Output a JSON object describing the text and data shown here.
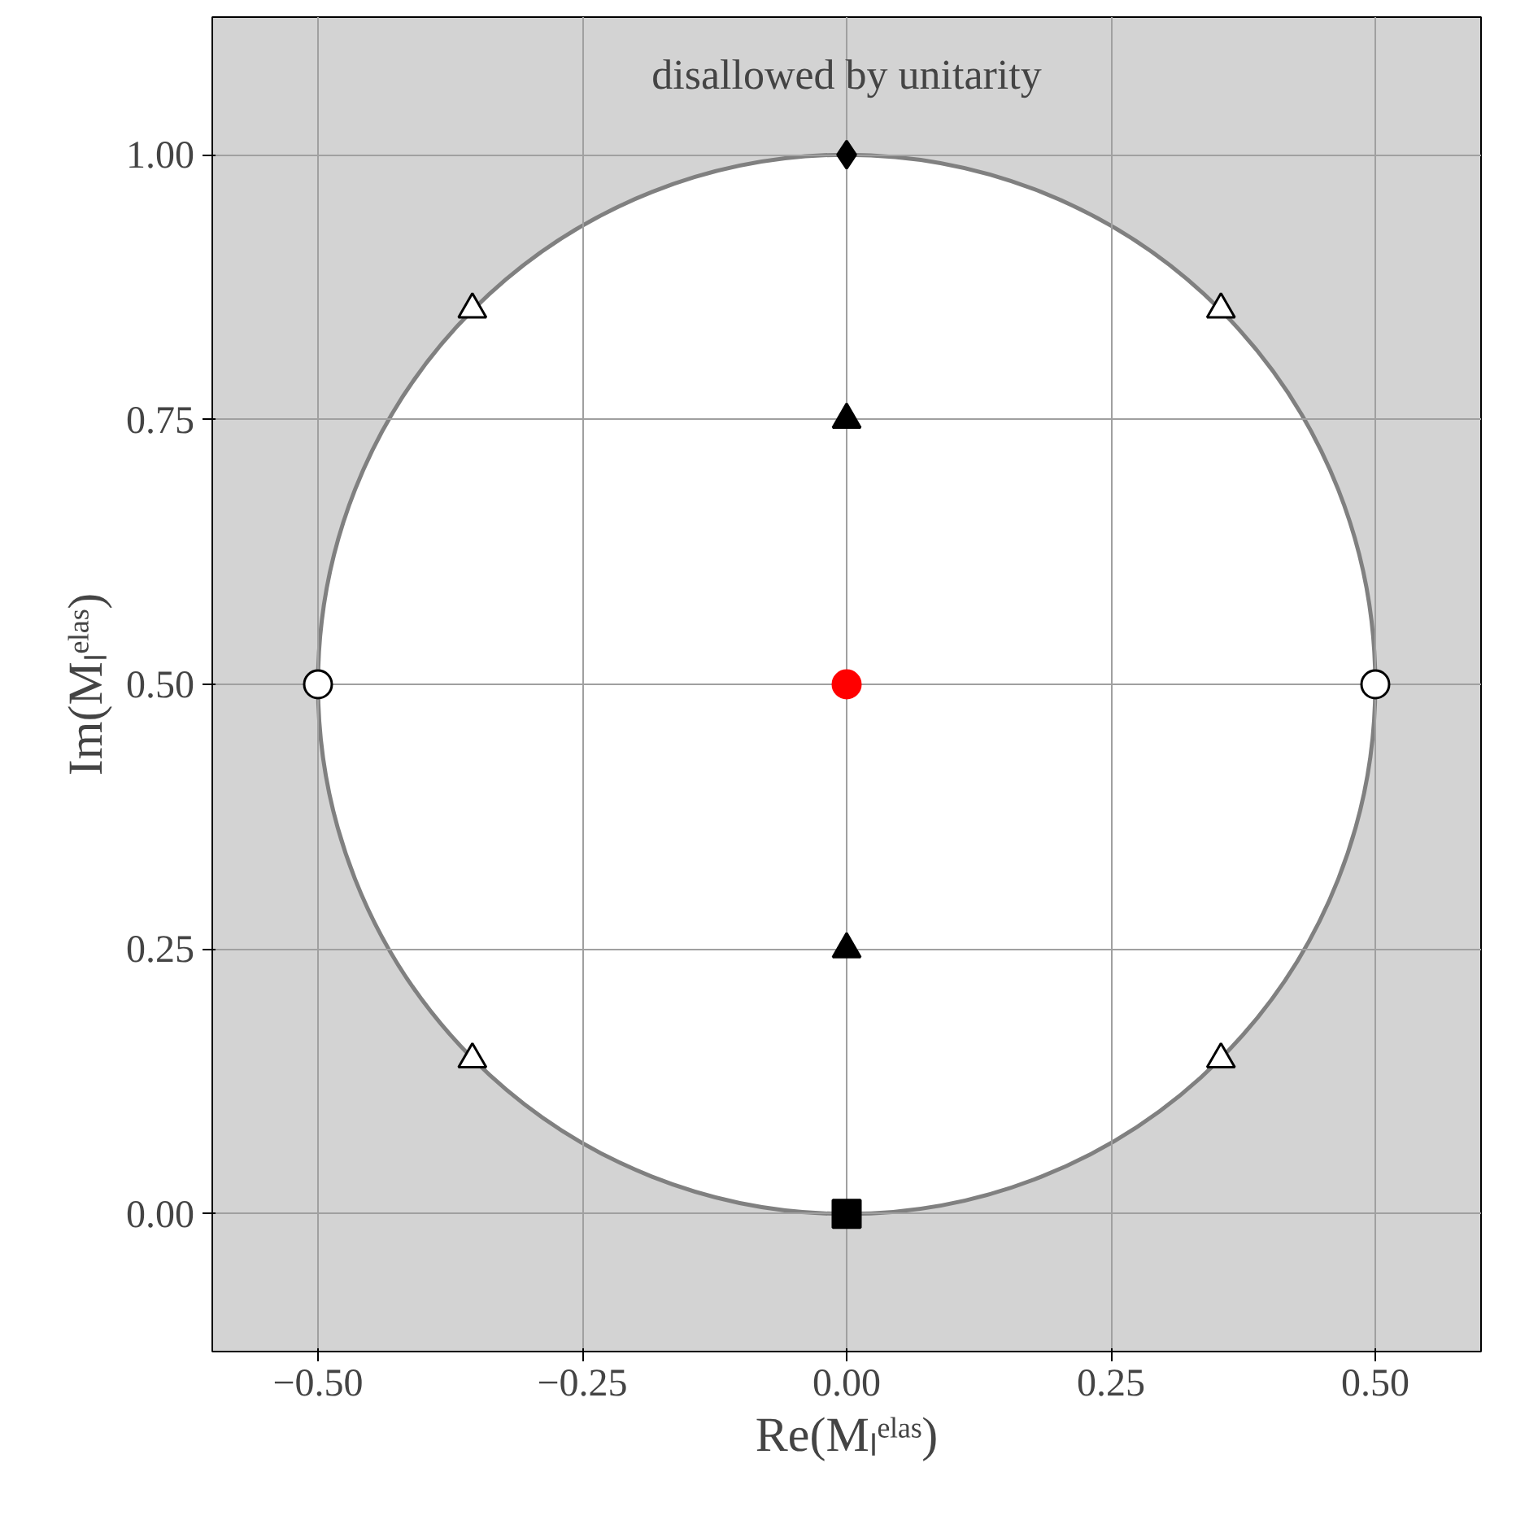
{
  "chart_data": {
    "type": "scatter",
    "xlabel": "Re(Mₗᵉˡᵃˢ)",
    "ylabel": "Im(Mₗᵉˡᵃˢ)",
    "annotations": [
      "disallowed by unitarity"
    ],
    "xlim": [
      -0.6,
      0.6
    ],
    "ylim": [
      -0.13,
      1.13
    ],
    "xticks": [
      {
        "value": -0.5,
        "label": "−0.50"
      },
      {
        "value": -0.25,
        "label": "−0.25"
      },
      {
        "value": 0,
        "label": "0.00"
      },
      {
        "value": 0.25,
        "label": "0.25"
      },
      {
        "value": 0.5,
        "label": "0.50"
      }
    ],
    "yticks": [
      {
        "value": 0,
        "label": "0.00"
      },
      {
        "value": 0.25,
        "label": "0.25"
      },
      {
        "value": 0.5,
        "label": "0.50"
      },
      {
        "value": 0.75,
        "label": "0.75"
      },
      {
        "value": 1,
        "label": "1.00"
      }
    ],
    "grid": true,
    "series": [
      {
        "color": "#ffffff",
        "marker": "circle",
        "x": [
          -0.5,
          0.5
        ],
        "values": [
          0.5,
          0.5
        ]
      },
      {
        "color": "#ffffff",
        "marker": "triangle",
        "x": [
          -0.354,
          0.354
        ],
        "values": [
          0.854,
          0.854
        ]
      },
      {
        "color": "#ffffff",
        "marker": "triangle",
        "x": [
          -0.354,
          0.354
        ],
        "values": [
          0.146,
          0.146
        ]
      },
      {
        "color": "#000000",
        "marker": "diamond",
        "x": [
          0
        ],
        "values": [
          1
        ]
      },
      {
        "color": "#000000",
        "marker": "triangle",
        "x": [
          0
        ],
        "values": [
          0.75
        ]
      },
      {
        "color": "#ff0000",
        "marker": "circle",
        "x": [
          0
        ],
        "values": [
          0.5
        ]
      },
      {
        "color": "#000000",
        "marker": "triangle",
        "x": [
          0
        ],
        "values": [
          0.25
        ]
      },
      {
        "color": "#000000",
        "marker": "square",
        "x": [
          0
        ],
        "values": [
          0
        ]
      }
    ]
  }
}
